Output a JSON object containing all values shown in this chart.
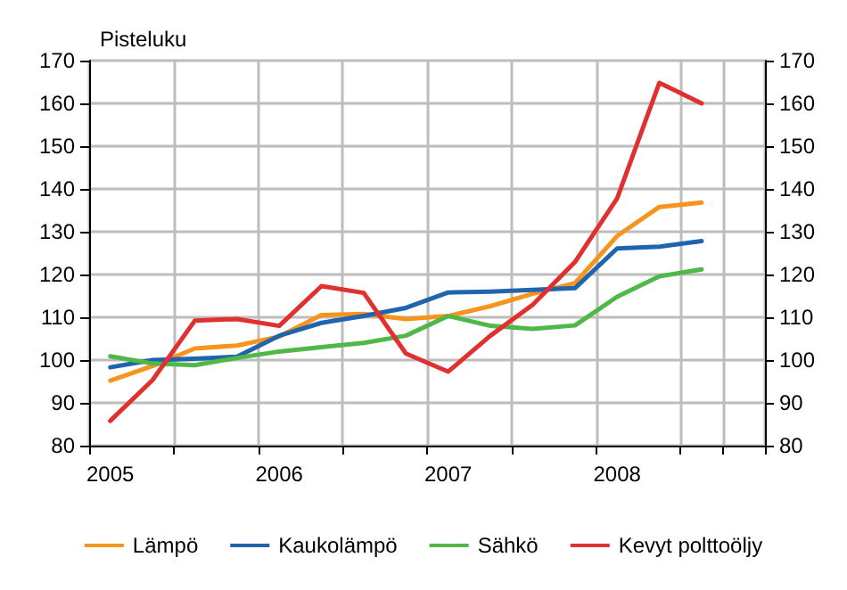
{
  "chart_data": {
    "type": "line",
    "ylabel": "Pisteluku",
    "categories": [
      "2005",
      null,
      null,
      null,
      "2006",
      null,
      null,
      null,
      "2007",
      null,
      null,
      null,
      "2008",
      null,
      null,
      null
    ],
    "series": [
      {
        "name": "Lämpö",
        "color": "#f7941d",
        "values": [
          95.2,
          98.6,
          102.7,
          103.4,
          105.5,
          110.5,
          110.8,
          109.6,
          110.3,
          112.6,
          115.5,
          118,
          129,
          135.8,
          136.8,
          null
        ]
      },
      {
        "name": "Kaukolämpö",
        "color": "#1f64ad",
        "values": [
          98.3,
          100,
          100.3,
          100.8,
          105.7,
          108.7,
          110.3,
          112.2,
          115.8,
          116,
          116.4,
          116.8,
          126.1,
          126.5,
          127.8,
          null
        ]
      },
      {
        "name": "Sähkö",
        "color": "#50b848",
        "values": [
          100.9,
          99.2,
          98.8,
          100.5,
          102,
          103,
          104,
          105.7,
          110.3,
          108,
          107.3,
          108.1,
          114.8,
          119.6,
          121.2,
          null
        ]
      },
      {
        "name": "Kevyt polttoöljy",
        "color": "#e0302f",
        "values": [
          85.8,
          95.3,
          109.2,
          109.6,
          108,
          117.3,
          115.7,
          101.5,
          97.3,
          105.7,
          112.9,
          122.9,
          137.8,
          164.8,
          160,
          null
        ]
      }
    ],
    "ylim": [
      80,
      170
    ],
    "yticks": [
      80,
      90,
      100,
      110,
      120,
      130,
      140,
      150,
      160,
      170
    ],
    "y2lim": [
      80,
      170
    ],
    "y2ticks": [
      80,
      90,
      100,
      110,
      120,
      130,
      140,
      150,
      160,
      170
    ],
    "grid": true,
    "legend": "bottom",
    "marker": "none",
    "line_style": "solid"
  }
}
